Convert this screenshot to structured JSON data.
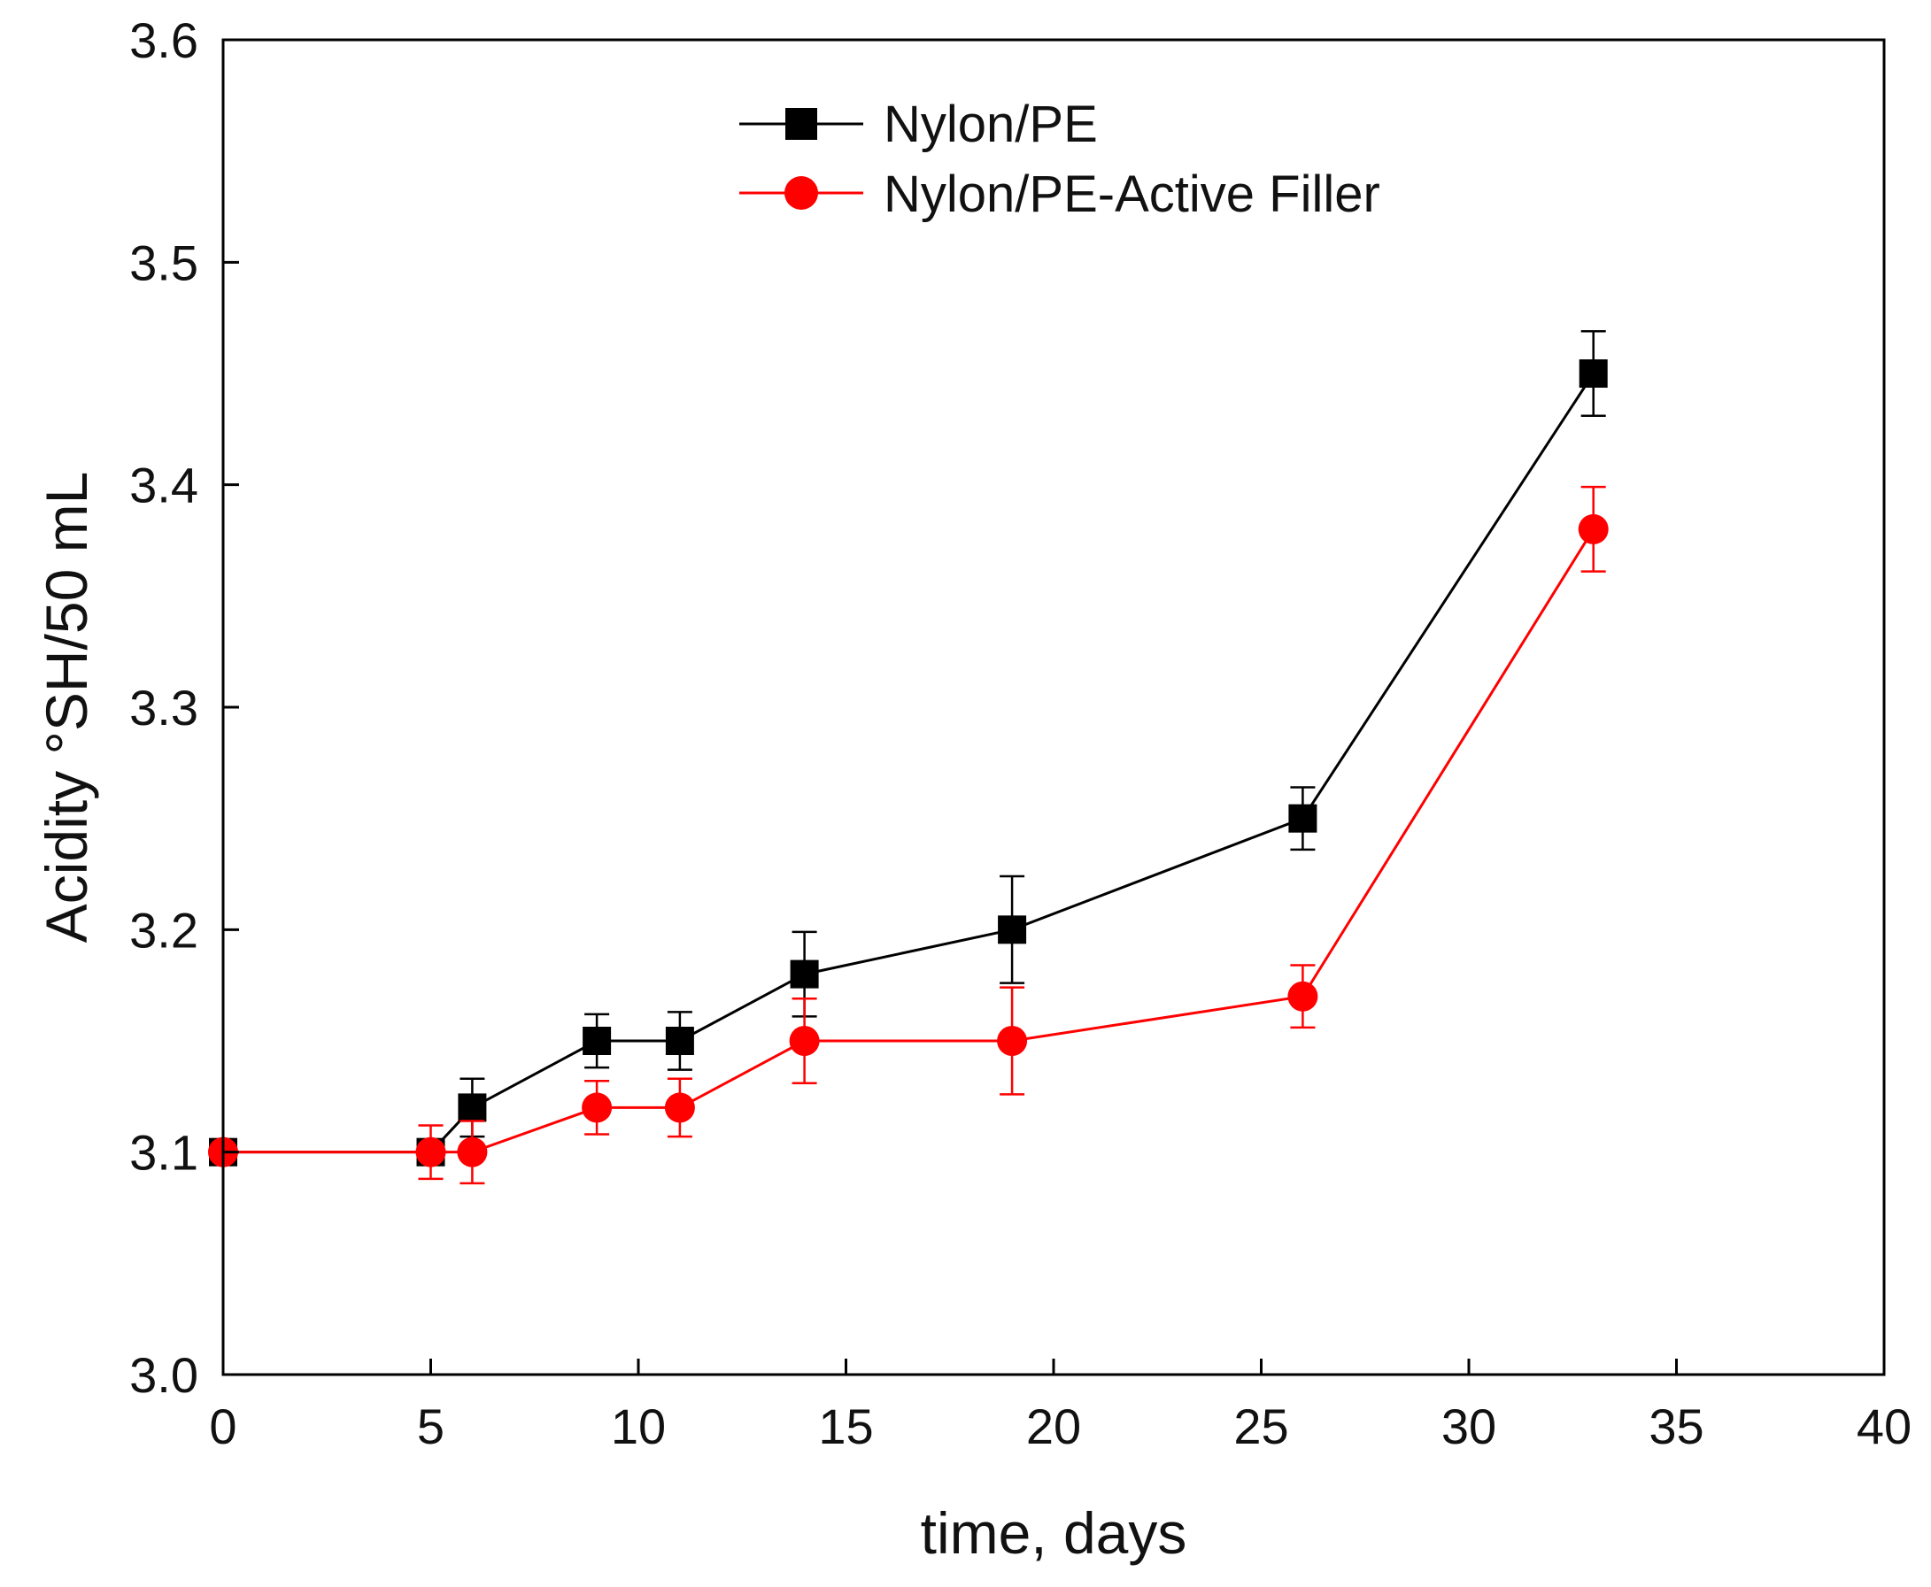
{
  "chart_data": {
    "type": "line",
    "title": "",
    "xlabel": "time, days",
    "ylabel": "Acidity °SH/50 mL",
    "xlim": [
      0,
      40
    ],
    "ylim": [
      3.0,
      3.6
    ],
    "xticks": [
      0,
      5,
      10,
      15,
      20,
      25,
      30,
      35,
      40
    ],
    "yticks": [
      3.0,
      3.1,
      3.2,
      3.3,
      3.4,
      3.5,
      3.6
    ],
    "xtick_labels": [
      "0",
      "5",
      "10",
      "15",
      "20",
      "25",
      "30",
      "35",
      "40"
    ],
    "ytick_labels": [
      "3.0",
      "3.1",
      "3.2",
      "3.3",
      "3.4",
      "3.5",
      "3.6"
    ],
    "grid": false,
    "legend_position": "top-center",
    "series": [
      {
        "name": "Nylon/PE",
        "color": "#000000",
        "marker": "square",
        "x": [
          0,
          5,
          6,
          9,
          11,
          14,
          19,
          26,
          33
        ],
        "y": [
          3.1,
          3.1,
          3.12,
          3.15,
          3.15,
          3.18,
          3.2,
          3.25,
          3.45
        ],
        "error": [
          0.0,
          0.005,
          0.013,
          0.012,
          0.013,
          0.019,
          0.024,
          0.014,
          0.019
        ]
      },
      {
        "name": "Nylon/PE-Active Filler",
        "color": "#ff0000",
        "marker": "circle",
        "x": [
          0,
          5,
          6,
          9,
          11,
          14,
          19,
          26,
          33
        ],
        "y": [
          3.1,
          3.1,
          3.1,
          3.12,
          3.12,
          3.15,
          3.15,
          3.17,
          3.38
        ],
        "error": [
          0.0,
          0.012,
          0.014,
          0.012,
          0.013,
          0.019,
          0.024,
          0.014,
          0.019
        ]
      }
    ]
  }
}
